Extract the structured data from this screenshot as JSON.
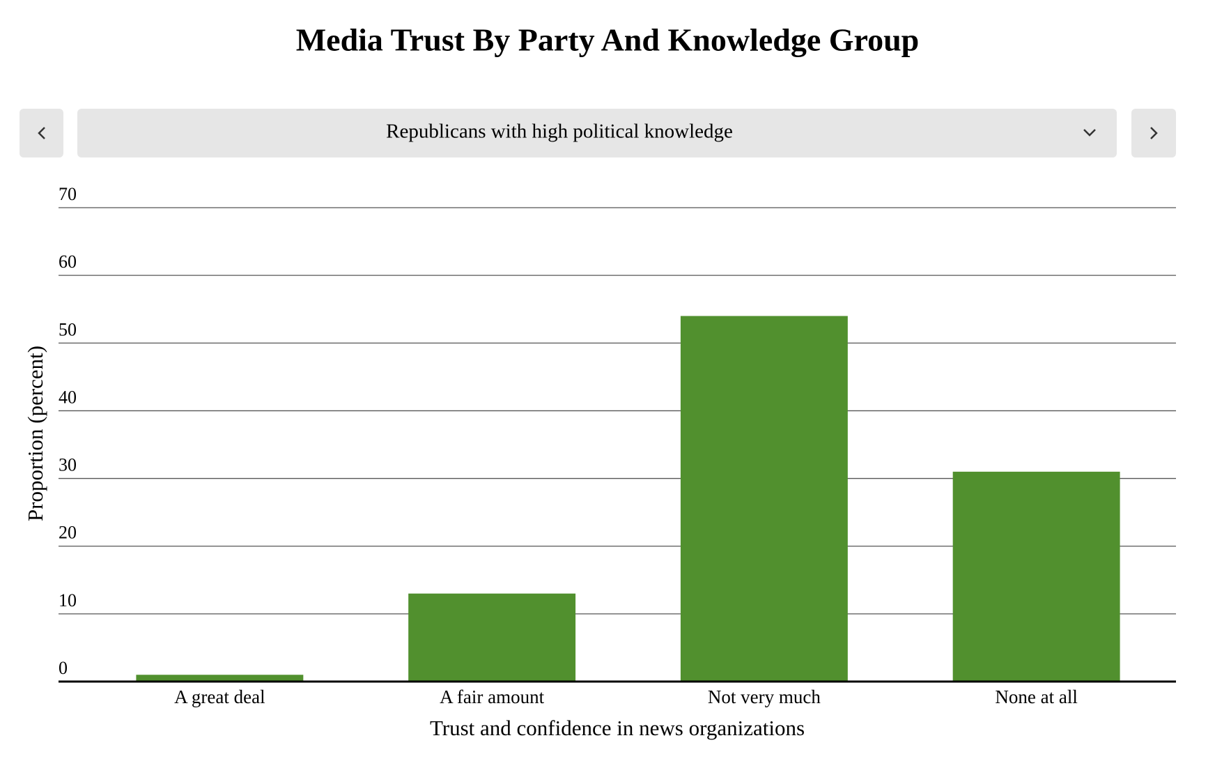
{
  "chart_data": {
    "type": "bar",
    "title": "Media Trust By Party And Knowledge Group",
    "selected_group": "Republicans with high political knowledge",
    "categories": [
      "A great deal",
      "A fair amount",
      "Not very much",
      "None at all"
    ],
    "values": [
      1,
      13,
      54,
      31
    ],
    "color": "#51902e",
    "xlabel": "Trust and confidence in news organizations",
    "ylabel": "Proportion (percent)",
    "ylim": [
      0,
      70
    ],
    "yticks": [
      0,
      10,
      20,
      30,
      40,
      50,
      60,
      70
    ],
    "grid": true
  }
}
